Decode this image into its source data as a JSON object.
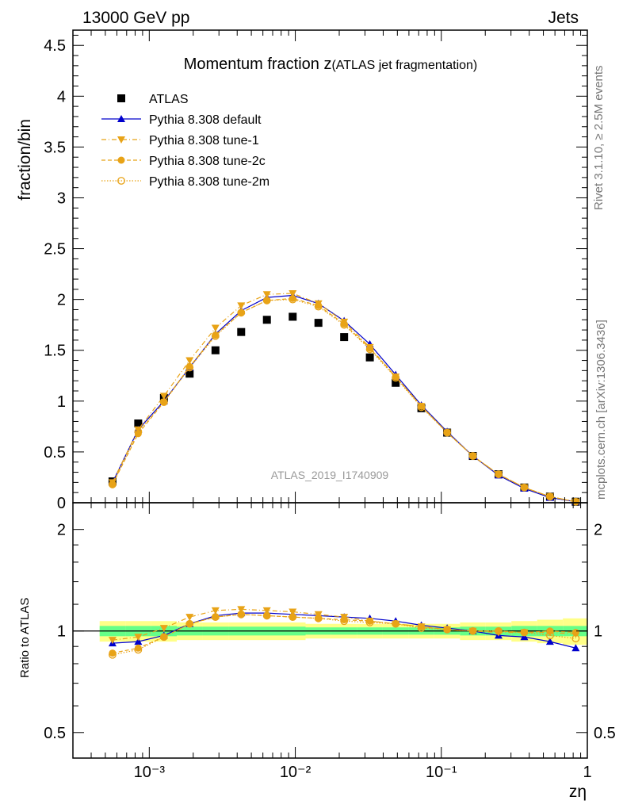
{
  "header": {
    "left": "13000 GeV pp",
    "right": "Jets"
  },
  "side_labels": {
    "rivet": "Rivet 3.1.10, ≥ 2.5M events",
    "mcplots": "mcplots.cern.ch [arXiv:1306.3436]"
  },
  "watermark": "ATLAS_2019_I1740909",
  "colors": {
    "atlas": "#000000",
    "default": "#0000cc",
    "tune": "#e8a317",
    "band_green": "#66ff88",
    "band_yellow": "#ffff88"
  },
  "chart_data": [
    {
      "type": "scatter",
      "title_main": "Momentum fraction z",
      "title_sub": "(ATLAS jet fragmentation)",
      "ylabel": "fraction/bin",
      "xscale": "log",
      "xlim": [
        0.0003,
        1
      ],
      "ylim": [
        0,
        4.65
      ],
      "yticks": [
        "0",
        "0.5",
        "1",
        "1.5",
        "2",
        "2.5",
        "3",
        "3.5",
        "4",
        "4.5"
      ],
      "legend_position": "top-left",
      "x": [
        0.00056,
        0.00084,
        0.00126,
        0.00189,
        0.00284,
        0.00426,
        0.00639,
        0.0096,
        0.0144,
        0.0216,
        0.0324,
        0.0487,
        0.073,
        0.1096,
        0.1644,
        0.2466,
        0.37,
        0.555,
        0.833
      ],
      "series": [
        {
          "name": "ATLAS",
          "marker": "square",
          "values": [
            0.21,
            0.78,
            1.03,
            1.27,
            1.5,
            1.68,
            1.8,
            1.83,
            1.77,
            1.63,
            1.43,
            1.18,
            0.93,
            0.69,
            0.46,
            0.28,
            0.15,
            0.06,
            0.01
          ]
        },
        {
          "name": "Pythia 8.308 default",
          "marker": "triangle-up",
          "line": "solid",
          "values": [
            0.2,
            0.72,
            1.0,
            1.33,
            1.66,
            1.89,
            2.02,
            2.04,
            1.96,
            1.79,
            1.56,
            1.26,
            0.96,
            0.7,
            0.46,
            0.27,
            0.14,
            0.05,
            0.01
          ]
        },
        {
          "name": "Pythia 8.308 tune-1",
          "marker": "triangle-down",
          "line": "dashdot",
          "values": [
            0.2,
            0.72,
            1.05,
            1.4,
            1.72,
            1.94,
            2.05,
            2.06,
            1.96,
            1.78,
            1.53,
            1.24,
            0.95,
            0.69,
            0.46,
            0.28,
            0.15,
            0.06,
            0.01
          ]
        },
        {
          "name": "Pythia 8.308 tune-2c",
          "marker": "circle-filled",
          "line": "dashed",
          "values": [
            0.18,
            0.68,
            0.99,
            1.34,
            1.65,
            1.87,
            1.99,
            2.01,
            1.94,
            1.76,
            1.52,
            1.24,
            0.95,
            0.69,
            0.46,
            0.28,
            0.15,
            0.06,
            0.01
          ]
        },
        {
          "name": "Pythia 8.308 tune-2m",
          "marker": "circle-open",
          "line": "dotted",
          "values": [
            0.18,
            0.7,
            0.99,
            1.33,
            1.64,
            1.87,
            1.99,
            2.0,
            1.93,
            1.75,
            1.51,
            1.23,
            0.94,
            0.69,
            0.46,
            0.28,
            0.15,
            0.06,
            0.01
          ]
        }
      ]
    },
    {
      "type": "scatter",
      "ylabel": "Ratio to ATLAS",
      "xlabel": "zη",
      "xscale": "log",
      "yscale": "log",
      "xlim": [
        0.0003,
        1
      ],
      "ylim": [
        0.42,
        2.4
      ],
      "yticks": [
        "0.5",
        "1",
        "2"
      ],
      "xticks": [
        "10⁻³",
        "10⁻²",
        "10⁻¹",
        "1"
      ],
      "x": [
        0.00056,
        0.00084,
        0.00126,
        0.00189,
        0.00284,
        0.00426,
        0.00639,
        0.0096,
        0.0144,
        0.0216,
        0.0324,
        0.0487,
        0.073,
        0.1096,
        0.1644,
        0.2466,
        0.37,
        0.555,
        0.833
      ],
      "bands": {
        "green_halfwidth": [
          0.035,
          0.035,
          0.035,
          0.03,
          0.03,
          0.03,
          0.03,
          0.03,
          0.025,
          0.025,
          0.025,
          0.025,
          0.025,
          0.025,
          0.03,
          0.03,
          0.035,
          0.035,
          0.035
        ],
        "yellow_halfwidth": [
          0.07,
          0.07,
          0.07,
          0.06,
          0.06,
          0.06,
          0.06,
          0.06,
          0.05,
          0.05,
          0.05,
          0.05,
          0.05,
          0.05,
          0.06,
          0.06,
          0.07,
          0.08,
          0.09
        ]
      },
      "series": [
        {
          "name": "Pythia 8.308 default",
          "values": [
            0.92,
            0.93,
            0.97,
            1.05,
            1.11,
            1.13,
            1.13,
            1.12,
            1.11,
            1.1,
            1.09,
            1.07,
            1.04,
            1.02,
            1.0,
            0.97,
            0.96,
            0.93,
            0.89
          ]
        },
        {
          "name": "Pythia 8.308 tune-1",
          "values": [
            0.94,
            0.96,
            1.02,
            1.1,
            1.15,
            1.16,
            1.15,
            1.14,
            1.12,
            1.1,
            1.07,
            1.05,
            1.03,
            1.01,
            1.0,
            0.99,
            0.99,
            0.99,
            0.98
          ]
        },
        {
          "name": "Pythia 8.308 tune-2c",
          "values": [
            0.86,
            0.89,
            0.96,
            1.05,
            1.1,
            1.12,
            1.11,
            1.1,
            1.09,
            1.08,
            1.07,
            1.05,
            1.03,
            1.01,
            1.0,
            1.0,
            0.99,
            1.0,
            0.99
          ]
        },
        {
          "name": "Pythia 8.308 tune-2m",
          "values": [
            0.85,
            0.88,
            0.96,
            1.05,
            1.1,
            1.12,
            1.11,
            1.1,
            1.09,
            1.07,
            1.06,
            1.05,
            1.02,
            1.01,
            1.0,
            1.0,
            0.99,
            0.97,
            0.95
          ]
        }
      ]
    }
  ]
}
